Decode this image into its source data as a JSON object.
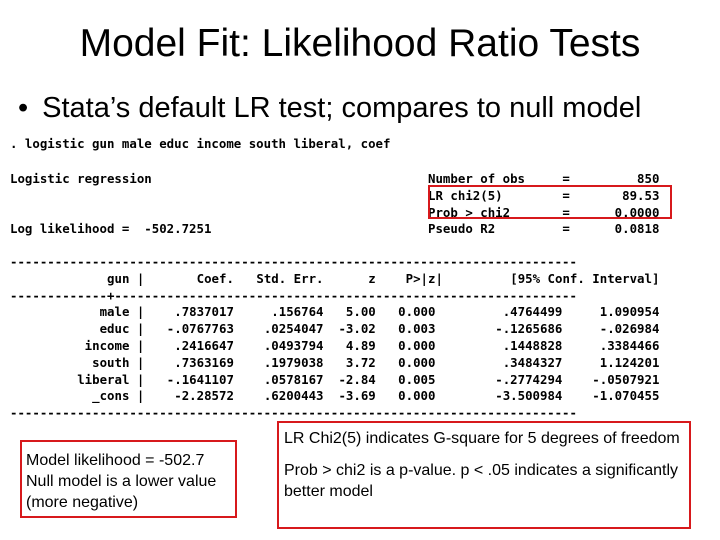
{
  "slide": {
    "title": "Model Fit:  Likelihood Ratio Tests",
    "bullet": "Stata’s default LR test; compares to null model"
  },
  "stata": {
    "command": ". logistic gun male educ income south liberal, coef",
    "model_name": "Logistic regression",
    "log_likelihood_label": "Log likelihood =",
    "log_likelihood_value": "-502.7251",
    "stats": [
      {
        "label": "Number of obs",
        "eq": "=",
        "value": "850"
      },
      {
        "label": "LR chi2(5)",
        "eq": "=",
        "value": "89.53"
      },
      {
        "label": "Prob > chi2",
        "eq": "=",
        "value": "0.0000"
      },
      {
        "label": "Pseudo R2",
        "eq": "=",
        "value": "0.0818"
      }
    ],
    "rule": "----------------------------------------------------------------------------",
    "midrule": "-------------+--------------------------------------------------------------",
    "header": [
      "gun",
      "Coef.",
      "Std. Err.",
      "z",
      "P>|z|",
      "[95% Conf. Interval]"
    ],
    "rows": [
      {
        "var": "male",
        "coef": ".7837017",
        "se": ".156764",
        "z": "5.00",
        "p": "0.000",
        "lo": ".4764499",
        "hi": "1.090954"
      },
      {
        "var": "educ",
        "coef": "-.0767763",
        "se": ".0254047",
        "z": "-3.02",
        "p": "0.003",
        "lo": "-.1265686",
        "hi": "-.026984"
      },
      {
        "var": "income",
        "coef": ".2416647",
        "se": ".0493794",
        "z": "4.89",
        "p": "0.000",
        "lo": ".1448828",
        "hi": ".3384466"
      },
      {
        "var": "south",
        "coef": ".7363169",
        "se": ".1979038",
        "z": "3.72",
        "p": "0.000",
        "lo": ".3484327",
        "hi": "1.124201"
      },
      {
        "var": "liberal",
        "coef": "-.1641107",
        "se": ".0578167",
        "z": "-2.84",
        "p": "0.005",
        "lo": "-.2774294",
        "hi": "-.0507921"
      },
      {
        "var": "_cons",
        "coef": "-2.28572",
        "se": ".6200443",
        "z": "-3.69",
        "p": "0.000",
        "lo": "-3.500984",
        "hi": "-1.070455"
      }
    ]
  },
  "notes": {
    "left": "Model likelihood = -502.7\nNull model is a lower value (more negative)",
    "right_1": "LR Chi2(5) indicates G-square for 5 degrees of freedom",
    "right_2": "Prob > chi2 is a p-value.  p < .05 indicates a significantly better model"
  },
  "colors": {
    "accent_box": "#d7191c"
  }
}
